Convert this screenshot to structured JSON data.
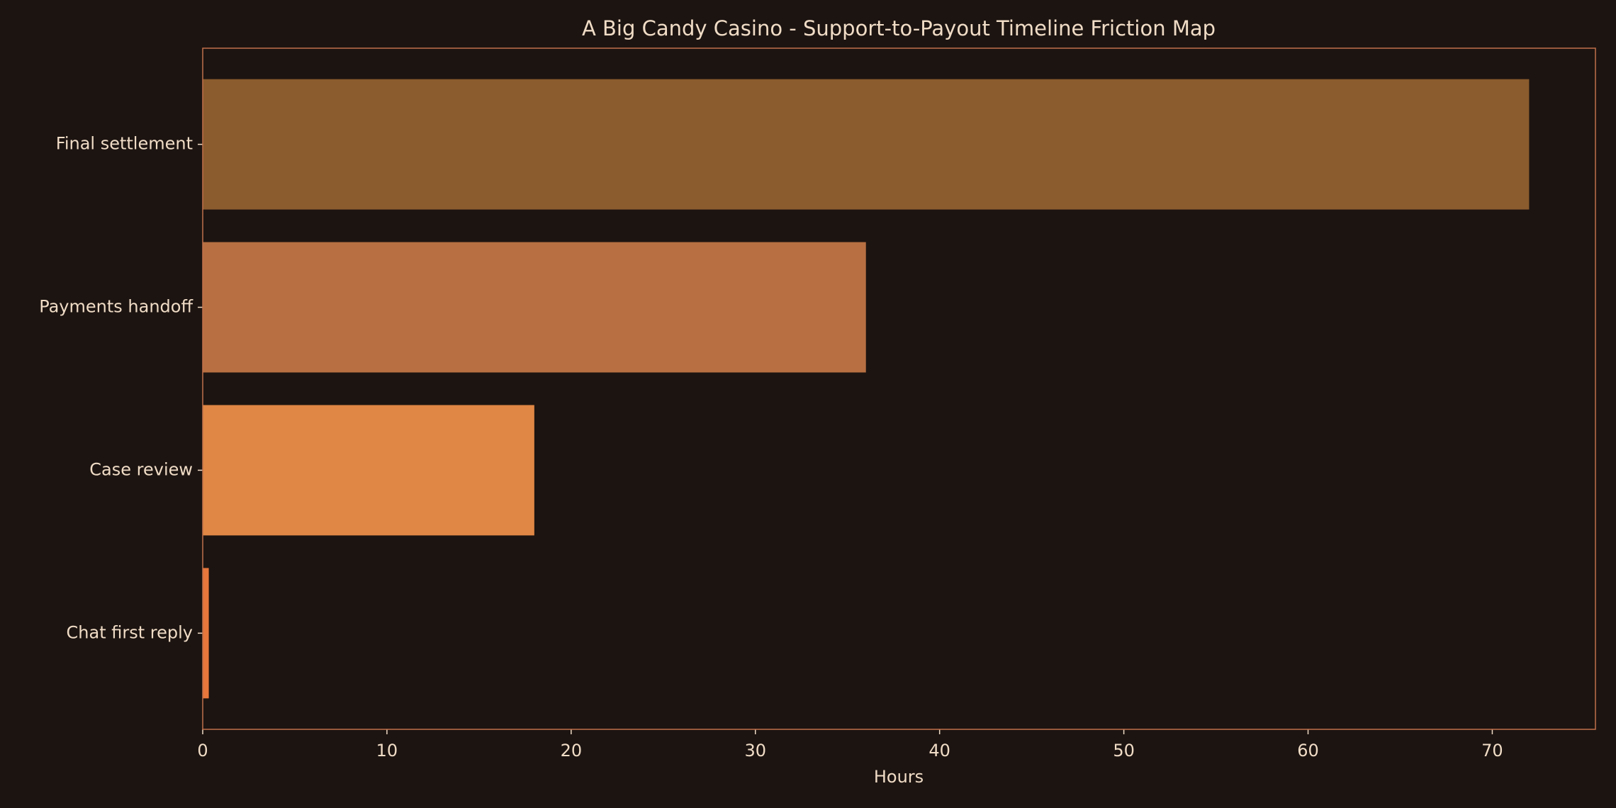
{
  "chart_data": {
    "type": "barh",
    "title": "A Big Candy Casino - Support-to-Payout Timeline Friction Map",
    "x_label": "Hours",
    "categories": [
      "Chat first reply",
      "Case review",
      "Payments handoff",
      "Final settlement"
    ],
    "values": [
      0.33,
      18,
      36,
      72
    ],
    "colors": [
      "#e8773c",
      "#e08745",
      "#b87042",
      "#8b5c2e"
    ],
    "xlim": [
      0,
      75.6
    ],
    "xticks": [
      0,
      10,
      20,
      30,
      40,
      50,
      60,
      70
    ],
    "grid": false
  }
}
